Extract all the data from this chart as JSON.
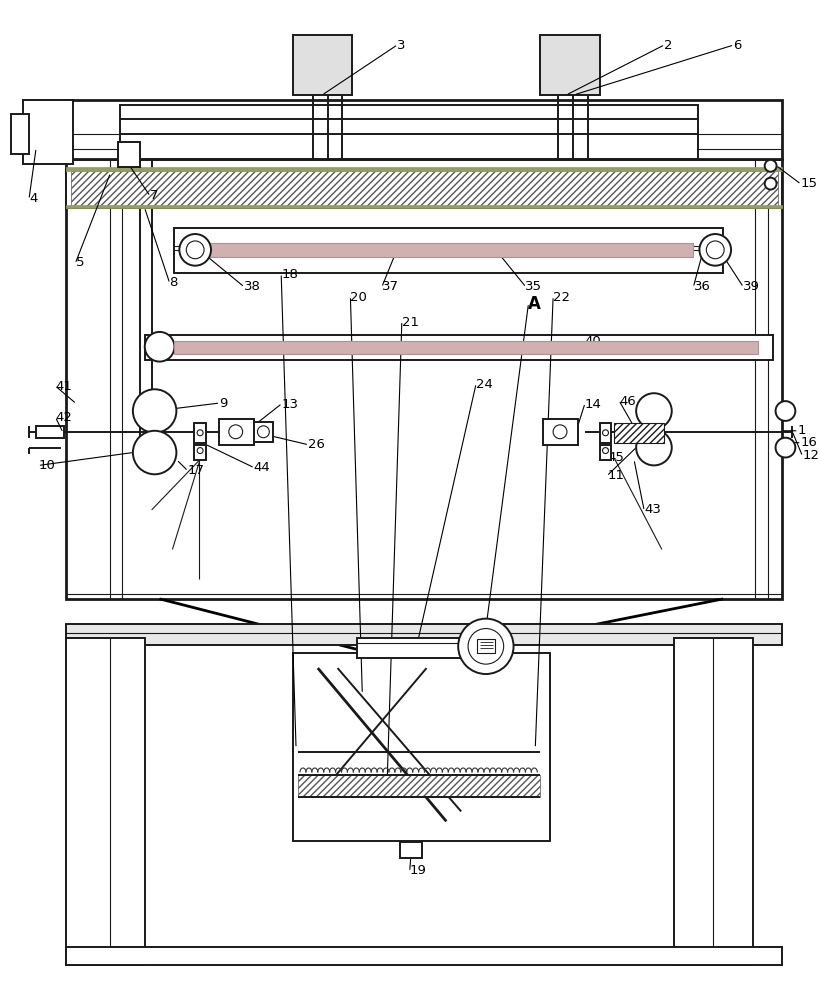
{
  "bg_color": "#ffffff",
  "lc": "#1a1a1a",
  "fig_width": 8.21,
  "fig_height": 10.0,
  "lw_main": 1.4,
  "lw_thin": 0.8,
  "lw_thick": 2.0
}
